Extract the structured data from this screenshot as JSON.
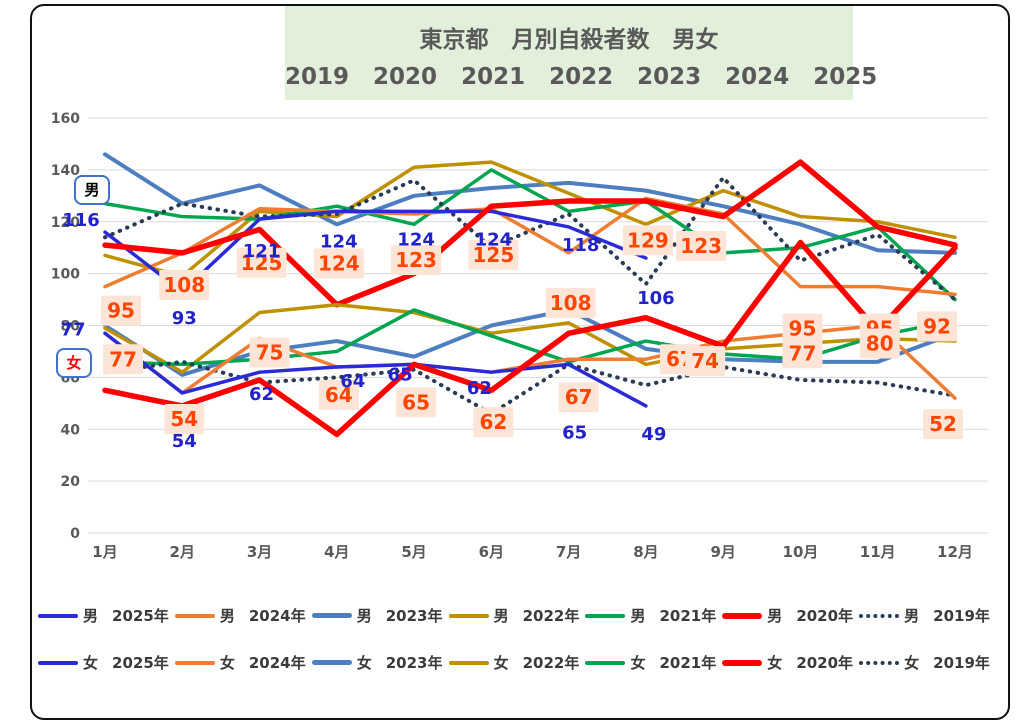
{
  "title": {
    "line1": "東京都　月別自殺者数　男女",
    "years": [
      "2019",
      "2020",
      "2021",
      "2022",
      "2023",
      "2024",
      "2025"
    ]
  },
  "annotations": {
    "male": "男",
    "female": "女"
  },
  "colors": {
    "y2025": "#2B2BD6",
    "y2024": "#ED7D31",
    "y2023": "#4D7EBF",
    "y2022": "#BF9000",
    "y2021": "#00A550",
    "y2020": "#FF0000",
    "y2019": "#2A3B55",
    "label_blue_text": "#2222CC",
    "label_peach_bg": "#FCE4D6",
    "label_peach_text": "#FF4500",
    "title_bg": "#E2EFDA",
    "title_text": "#595959",
    "grid": "#D9D9D9",
    "axis_text": "#595959",
    "annotation_border": "#4472C4"
  },
  "legend": {
    "male_rows": [
      {
        "sex": "男",
        "year": "2025年",
        "color_key": "y2025",
        "style": "solid",
        "thick": 4
      },
      {
        "sex": "男",
        "year": "2024年",
        "color_key": "y2024",
        "style": "solid",
        "thick": 4
      },
      {
        "sex": "男",
        "year": "2023年",
        "color_key": "y2023",
        "style": "solid",
        "thick": 5
      },
      {
        "sex": "男",
        "year": "2022年",
        "color_key": "y2022",
        "style": "solid",
        "thick": 4
      },
      {
        "sex": "男",
        "year": "2021年",
        "color_key": "y2021",
        "style": "solid",
        "thick": 4
      },
      {
        "sex": "男",
        "year": "2020年",
        "color_key": "y2020",
        "style": "solid",
        "thick": 6
      },
      {
        "sex": "男",
        "year": "2019年",
        "color_key": "y2019",
        "style": "dotted",
        "thick": 4
      }
    ],
    "female_rows": [
      {
        "sex": "女",
        "year": "2025年",
        "color_key": "y2025",
        "style": "solid",
        "thick": 4
      },
      {
        "sex": "女",
        "year": "2024年",
        "color_key": "y2024",
        "style": "solid",
        "thick": 4
      },
      {
        "sex": "女",
        "year": "2023年",
        "color_key": "y2023",
        "style": "solid",
        "thick": 5
      },
      {
        "sex": "女",
        "year": "2022年",
        "color_key": "y2022",
        "style": "solid",
        "thick": 4
      },
      {
        "sex": "女",
        "year": "2021年",
        "color_key": "y2021",
        "style": "solid",
        "thick": 4
      },
      {
        "sex": "女",
        "year": "2020年",
        "color_key": "y2020",
        "style": "solid",
        "thick": 6
      },
      {
        "sex": "女",
        "year": "2019年",
        "color_key": "y2019",
        "style": "dotted",
        "thick": 4
      }
    ]
  },
  "chart_data": {
    "type": "line",
    "title": "東京都　月別自殺者数　男女",
    "categories": [
      "1月",
      "2月",
      "3月",
      "4月",
      "5月",
      "6月",
      "7月",
      "8月",
      "9月",
      "10月",
      "11月",
      "12月"
    ],
    "ylim": [
      0,
      160
    ],
    "y_ticks": [
      0,
      20,
      40,
      60,
      80,
      100,
      120,
      140,
      160
    ],
    "grid": "horizontal",
    "legend_position": "bottom",
    "series": [
      {
        "name": "男 2023年",
        "sex": "男",
        "year": "2023",
        "color_key": "y2023",
        "dash": "none",
        "width": 4,
        "values": [
          146,
          127,
          134,
          119,
          130,
          133,
          135,
          132,
          126,
          119,
          109,
          108
        ]
      },
      {
        "name": "男 2022年",
        "sex": "男",
        "year": "2022",
        "color_key": "y2022",
        "dash": "none",
        "width": 3.5,
        "values": [
          107,
          99,
          124,
          122,
          141,
          143,
          131,
          119,
          132,
          122,
          120,
          114
        ]
      },
      {
        "name": "男 2021年",
        "sex": "男",
        "year": "2021",
        "color_key": "y2021",
        "dash": "none",
        "width": 3.5,
        "values": [
          127,
          122,
          121,
          126,
          119,
          140,
          124,
          128,
          108,
          110,
          118,
          90
        ]
      },
      {
        "name": "男 2019年",
        "sex": "男",
        "year": "2019",
        "color_key": "y2019",
        "dash": "dotted",
        "width": 3.5,
        "values": [
          114,
          127,
          122,
          123,
          136,
          110,
          123,
          96,
          137,
          105,
          115,
          90
        ]
      },
      {
        "name": "男 2024年",
        "sex": "男",
        "year": "2024",
        "color_key": "y2024",
        "dash": "none",
        "width": 3.5,
        "labels": "peach",
        "values": [
          95,
          108,
          125,
          124,
          123,
          125,
          108,
          129,
          123,
          95,
          95,
          92
        ]
      },
      {
        "name": "男 2025年",
        "sex": "男",
        "year": "2025",
        "color_key": "y2025",
        "dash": "none",
        "width": 3.5,
        "labels": "blue",
        "values": [
          116,
          93,
          121,
          124,
          124,
          124,
          118,
          106
        ]
      },
      {
        "name": "男 2020年",
        "sex": "男",
        "year": "2020",
        "color_key": "y2020",
        "dash": "none",
        "width": 5.5,
        "values": [
          111,
          108,
          117,
          88,
          100,
          126,
          128,
          128,
          122,
          143,
          118,
          111
        ]
      },
      {
        "name": "女 2023年",
        "sex": "女",
        "year": "2023",
        "color_key": "y2023",
        "dash": "none",
        "width": 4,
        "values": [
          80,
          61,
          70,
          74,
          68,
          80,
          86,
          71,
          67,
          66,
          66,
          77
        ]
      },
      {
        "name": "女 2022年",
        "sex": "女",
        "year": "2022",
        "color_key": "y2022",
        "dash": "none",
        "width": 3.5,
        "values": [
          79,
          62,
          85,
          88,
          85,
          77,
          81,
          65,
          71,
          73,
          75,
          74
        ]
      },
      {
        "name": "女 2021年",
        "sex": "女",
        "year": "2021",
        "color_key": "y2021",
        "dash": "none",
        "width": 3.5,
        "values": [
          66,
          65,
          67,
          70,
          86,
          76,
          66,
          74,
          69,
          67,
          76,
          82
        ]
      },
      {
        "name": "女 2019年",
        "sex": "女",
        "year": "2019",
        "color_key": "y2019",
        "dash": "dotted",
        "width": 3.5,
        "values": [
          62,
          66,
          58,
          60,
          63,
          46,
          65,
          57,
          64,
          59,
          58,
          53
        ]
      },
      {
        "name": "女 2024年",
        "sex": "女",
        "year": "2024",
        "color_key": "y2024",
        "dash": "none",
        "width": 3.5,
        "labels": "peach",
        "values": [
          77,
          54,
          75,
          64,
          65,
          62,
          67,
          67,
          74,
          77,
          80,
          52
        ]
      },
      {
        "name": "女 2025年",
        "sex": "女",
        "year": "2025",
        "color_key": "y2025",
        "dash": "none",
        "width": 3.5,
        "labels": "blue",
        "values": [
          77,
          54,
          62,
          64,
          65,
          62,
          65,
          49
        ]
      },
      {
        "name": "女 2020年",
        "sex": "女",
        "year": "2020",
        "color_key": "y2020",
        "dash": "none",
        "width": 5.5,
        "values": [
          55,
          49,
          59,
          38,
          65,
          55,
          77,
          83,
          72,
          112,
          78,
          110
        ]
      }
    ]
  }
}
